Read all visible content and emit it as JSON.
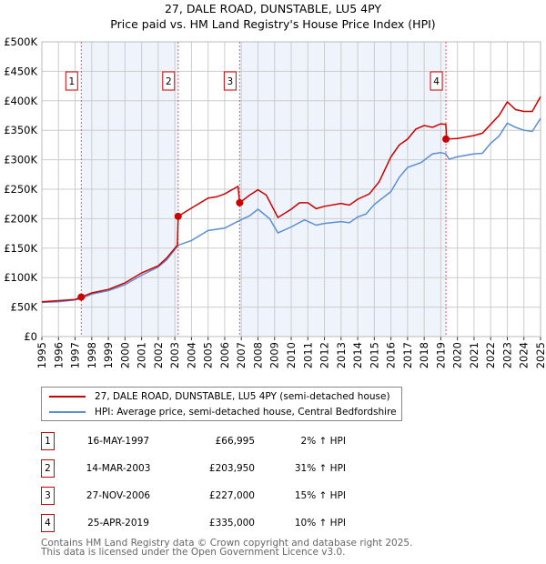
{
  "chart_data": {
    "type": "line",
    "title": "27, DALE ROAD, DUNSTABLE, LU5 4PY",
    "subtitle": "Price paid vs. HM Land Registry's House Price Index (HPI)",
    "xlim": [
      1995,
      2025
    ],
    "ylim": [
      0,
      500000
    ],
    "yticks": [
      0,
      50000,
      100000,
      150000,
      200000,
      250000,
      300000,
      350000,
      400000,
      450000,
      500000
    ],
    "ytick_labels": [
      "£0",
      "£50K",
      "£100K",
      "£150K",
      "£200K",
      "£250K",
      "£300K",
      "£350K",
      "£400K",
      "£450K",
      "£500K"
    ],
    "xtick_labels": [
      "1995",
      "1996",
      "1997",
      "1998",
      "1999",
      "2000",
      "2001",
      "2002",
      "2003",
      "2004",
      "2005",
      "2006",
      "2007",
      "2008",
      "2009",
      "2010",
      "2011",
      "2012",
      "2013",
      "2014",
      "2015",
      "2016",
      "2017",
      "2018",
      "2019",
      "2020",
      "2021",
      "2022",
      "2023",
      "2024",
      "2025"
    ],
    "grid": true,
    "series": [
      {
        "name": "27, DALE ROAD, DUNSTABLE, LU5 4PY (semi-detached house)",
        "color": "#cc0000",
        "x": [
          1995,
          1996,
          1997,
          1997.37,
          1998,
          1999,
          2000,
          2001,
          2002,
          2002.5,
          2003.15,
          2003.2,
          2004,
          2005,
          2005.5,
          2006,
          2006.8,
          2006.9,
          2007.5,
          2008,
          2008.5,
          2009.2,
          2010,
          2010.5,
          2011,
          2011.5,
          2012,
          2013,
          2013.5,
          2014,
          2014.7,
          2015.3,
          2016,
          2016.5,
          2017,
          2017.5,
          2018,
          2018.5,
          2019,
          2019.3,
          2019.35,
          2020,
          2021,
          2021.5,
          2022,
          2022.5,
          2023,
          2023.5,
          2024,
          2024.5,
          2025
        ],
        "y": [
          59000,
          61000,
          63000,
          67000,
          74000,
          80000,
          91000,
          108000,
          120000,
          133000,
          155000,
          204000,
          218000,
          235000,
          237000,
          242000,
          255000,
          227000,
          240000,
          249000,
          240000,
          202000,
          216000,
          227000,
          227000,
          217000,
          221000,
          226000,
          223000,
          233000,
          242000,
          263000,
          305000,
          325000,
          335000,
          352000,
          358000,
          355000,
          361000,
          360000,
          335000,
          336000,
          341000,
          345000,
          360000,
          375000,
          398000,
          385000,
          382000,
          382000,
          407000
        ]
      },
      {
        "name": "HPI: Average price, semi-detached house, Central Bedfordshire",
        "color": "#5b8fd4",
        "x": [
          1995,
          1996,
          1997,
          1997.4,
          1998,
          1999,
          2000,
          2001,
          2002,
          2002.5,
          2003.2,
          2004,
          2005,
          2006,
          2006.9,
          2007.5,
          2008,
          2008.7,
          2009.2,
          2010,
          2010.8,
          2011.5,
          2012,
          2013,
          2013.5,
          2014,
          2014.5,
          2015,
          2016,
          2016.5,
          2017,
          2017.8,
          2018.5,
          2019,
          2019.3,
          2019.5,
          2020,
          2021,
          2021.5,
          2022,
          2022.5,
          2023,
          2023.5,
          2024,
          2024.5,
          2025
        ],
        "y": [
          58000,
          59000,
          62000,
          65000,
          72000,
          78000,
          88000,
          104000,
          118000,
          130000,
          155000,
          163000,
          180000,
          184000,
          197000,
          205000,
          216000,
          200000,
          176000,
          186000,
          198000,
          189000,
          192000,
          195000,
          193000,
          203000,
          208000,
          224000,
          246000,
          270000,
          287000,
          295000,
          310000,
          312000,
          310000,
          301000,
          305000,
          310000,
          311000,
          328000,
          340000,
          362000,
          355000,
          350000,
          348000,
          370000
        ]
      }
    ],
    "sales": [
      {
        "num": "1",
        "x": 1997.37,
        "y": 66995
      },
      {
        "num": "2",
        "x": 2003.2,
        "y": 203950
      },
      {
        "num": "3",
        "x": 2006.9,
        "y": 227000
      },
      {
        "num": "4",
        "x": 2019.31,
        "y": 335000
      }
    ],
    "shaded_ranges": [
      [
        1997.37,
        2003.2
      ],
      [
        2006.9,
        2019.31
      ]
    ],
    "legend_position": "below"
  },
  "legend": {
    "red": "27, DALE ROAD, DUNSTABLE, LU5 4PY (semi-detached house)",
    "blue": "HPI: Average price, semi-detached house, Central Bedfordshire"
  },
  "sales_table": [
    {
      "num": "1",
      "date": "16-MAY-1997",
      "price": "£66,995",
      "hpi": "2% ↑ HPI"
    },
    {
      "num": "2",
      "date": "14-MAR-2003",
      "price": "£203,950",
      "hpi": "31% ↑ HPI"
    },
    {
      "num": "3",
      "date": "27-NOV-2006",
      "price": "£227,000",
      "hpi": "15% ↑ HPI"
    },
    {
      "num": "4",
      "date": "25-APR-2019",
      "price": "£335,000",
      "hpi": "10% ↑ HPI"
    }
  ],
  "footer": {
    "line1": "Contains HM Land Registry data © Crown copyright and database right 2025.",
    "line2": "This data is licensed under the Open Government Licence v3.0."
  }
}
